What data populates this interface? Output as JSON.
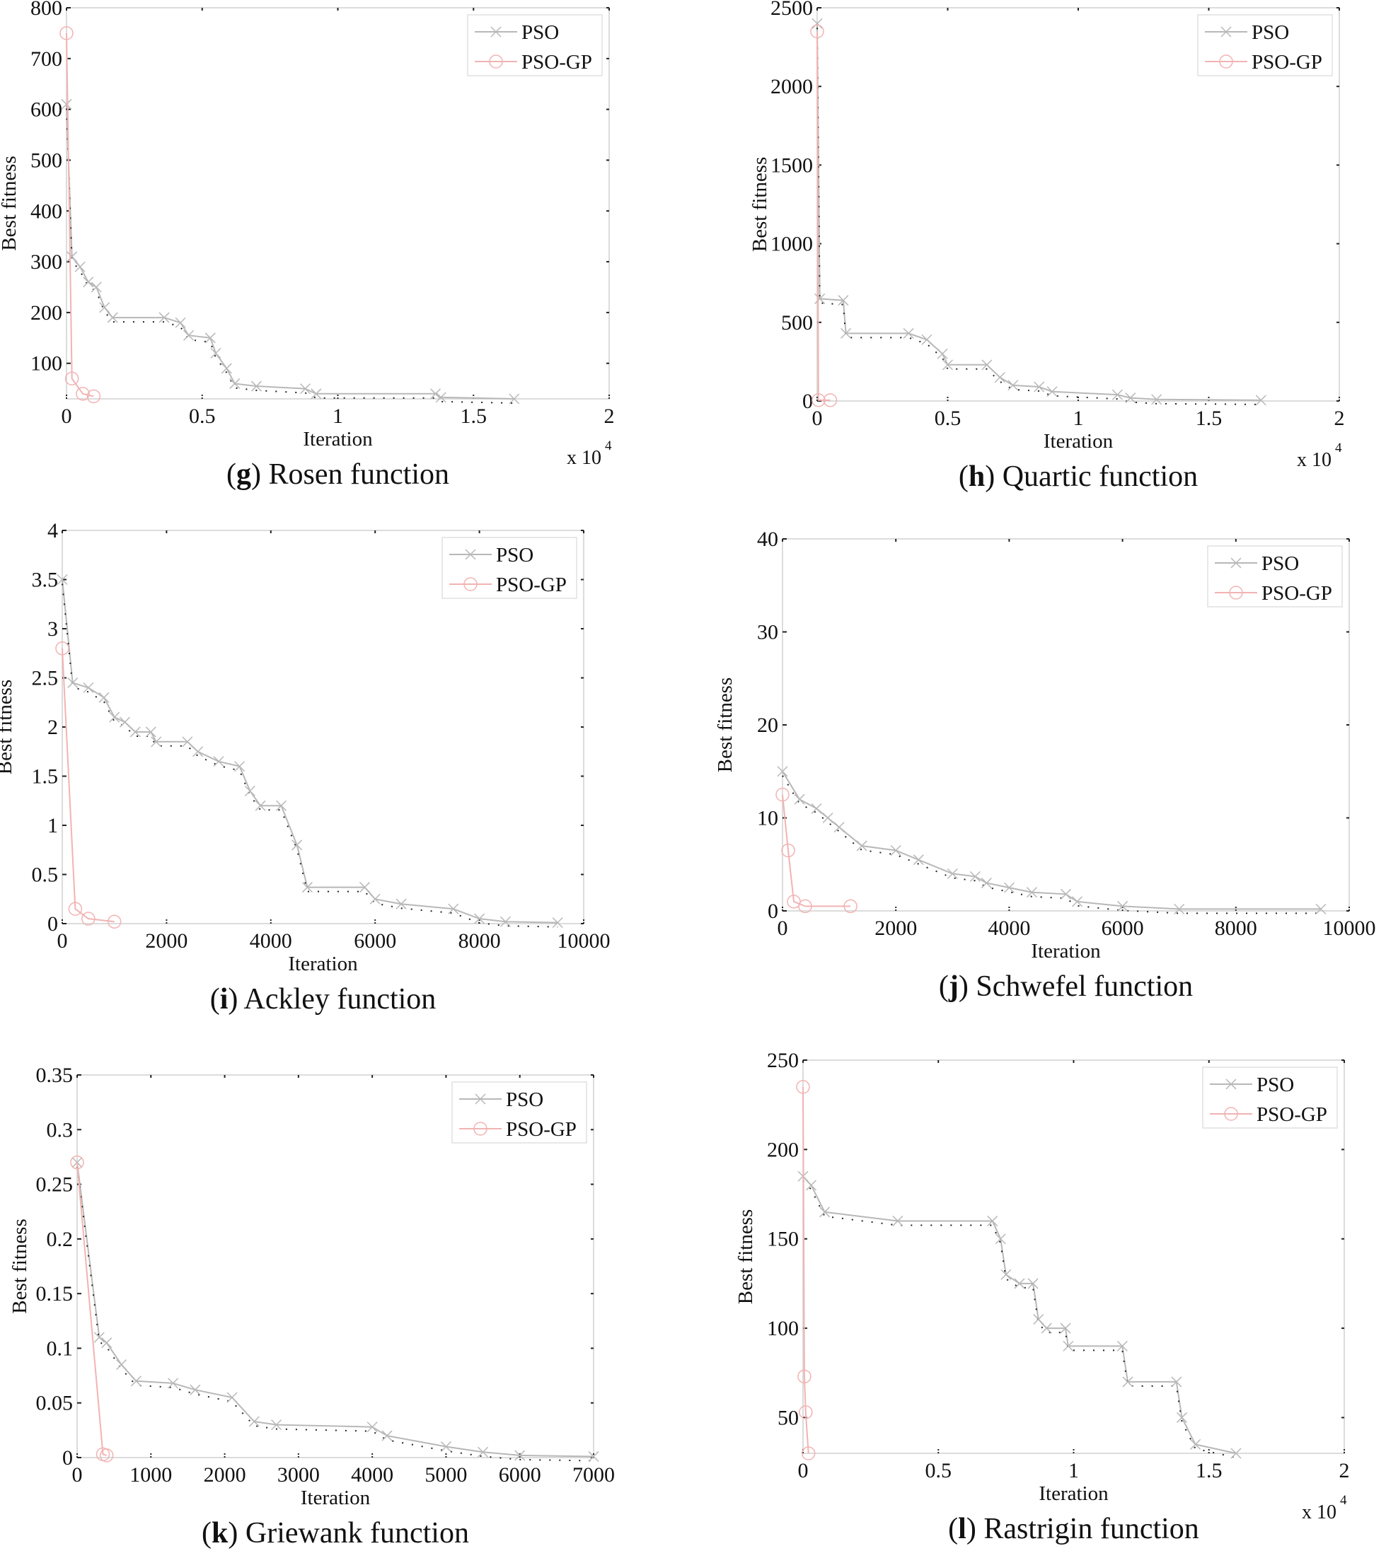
{
  "chart_data": [
    {
      "type": "line",
      "panel": "g",
      "caption_letter": "g",
      "caption_text": "Rosen function",
      "xlabel": "Iteration",
      "ylabel": "Best fitness",
      "x_multiplier": "x 10",
      "x_multiplier_exp": "4",
      "xlim": [
        0,
        20000
      ],
      "ylim": [
        30,
        800
      ],
      "xticks": [
        0,
        5000,
        10000,
        15000,
        20000
      ],
      "xtick_labels": [
        "0",
        "0.5",
        "1",
        "1.5",
        "2"
      ],
      "yticks": [
        100,
        200,
        300,
        400,
        500,
        600,
        700,
        800
      ],
      "ytick_labels": [
        "100",
        "200",
        "300",
        "400",
        "500",
        "600",
        "700",
        "800"
      ],
      "legend": [
        "PSO",
        "PSO-GP"
      ],
      "legend_position": "top-right",
      "series": [
        {
          "name": "PSO",
          "x": [
            0,
            200,
            500,
            800,
            1100,
            1400,
            1700,
            3600,
            4200,
            4500,
            5300,
            5500,
            5900,
            6200,
            7000,
            8800,
            9200,
            13600,
            13800,
            16500
          ],
          "y": [
            610,
            310,
            290,
            260,
            250,
            210,
            190,
            190,
            180,
            155,
            150,
            120,
            90,
            60,
            55,
            50,
            40,
            40,
            33,
            30
          ]
        },
        {
          "name": "PSO-GP",
          "x": [
            0,
            200,
            600,
            1000
          ],
          "y": [
            750,
            70,
            40,
            35
          ]
        }
      ]
    },
    {
      "type": "line",
      "panel": "h",
      "caption_letter": "h",
      "caption_text": "Quartic function",
      "xlabel": "Iteration",
      "ylabel": "Best fitness",
      "x_multiplier": "x 10",
      "x_multiplier_exp": "4",
      "xlim": [
        0,
        20000
      ],
      "ylim": [
        0,
        2500
      ],
      "xticks": [
        0,
        5000,
        10000,
        15000,
        20000
      ],
      "xtick_labels": [
        "0",
        "0.5",
        "1",
        "1.5",
        "2"
      ],
      "yticks": [
        0,
        500,
        1000,
        1500,
        2000,
        2500
      ],
      "ytick_labels": [
        "0",
        "500",
        "1000",
        "1500",
        "2000",
        "2500"
      ],
      "legend": [
        "PSO",
        "PSO-GP"
      ],
      "legend_position": "top-right",
      "series": [
        {
          "name": "PSO",
          "x": [
            0,
            100,
            1000,
            1100,
            3500,
            4200,
            4800,
            5000,
            6500,
            7000,
            7500,
            8500,
            9000,
            11500,
            12000,
            13000,
            17000
          ],
          "y": [
            2400,
            650,
            640,
            430,
            430,
            390,
            300,
            230,
            230,
            150,
            100,
            90,
            60,
            40,
            20,
            10,
            5
          ]
        },
        {
          "name": "PSO-GP",
          "x": [
            0,
            50,
            500
          ],
          "y": [
            2350,
            5,
            5
          ]
        }
      ]
    },
    {
      "type": "line",
      "panel": "i",
      "caption_letter": "i",
      "caption_text": "Ackley function",
      "xlabel": "Iteration",
      "ylabel": "Best fitness",
      "x_multiplier": "",
      "x_multiplier_exp": "",
      "xlim": [
        0,
        10000
      ],
      "ylim": [
        0,
        4
      ],
      "xticks": [
        0,
        2000,
        4000,
        6000,
        8000,
        10000
      ],
      "xtick_labels": [
        "0",
        "2000",
        "4000",
        "6000",
        "8000",
        "10000"
      ],
      "yticks": [
        0,
        0.5,
        1,
        1.5,
        2,
        2.5,
        3,
        3.5,
        4
      ],
      "ytick_labels": [
        "0",
        "0.5",
        "1",
        "1.5",
        "2",
        "2.5",
        "3",
        "3.5",
        "4"
      ],
      "legend": [
        "PSO",
        "PSO-GP"
      ],
      "legend_position": "top-right",
      "series": [
        {
          "name": "PSO",
          "x": [
            0,
            200,
            500,
            800,
            1000,
            1200,
            1400,
            1700,
            1800,
            2400,
            2600,
            3000,
            3400,
            3600,
            3800,
            4200,
            4500,
            4700,
            5800,
            6000,
            6500,
            7500,
            8000,
            8500,
            9500
          ],
          "y": [
            3.5,
            2.45,
            2.4,
            2.3,
            2.1,
            2.05,
            1.95,
            1.95,
            1.85,
            1.85,
            1.75,
            1.65,
            1.6,
            1.35,
            1.2,
            1.2,
            0.8,
            0.37,
            0.37,
            0.25,
            0.2,
            0.15,
            0.05,
            0.02,
            0.01
          ]
        },
        {
          "name": "PSO-GP",
          "x": [
            0,
            250,
            500,
            1000
          ],
          "y": [
            2.8,
            0.15,
            0.05,
            0.02
          ]
        }
      ]
    },
    {
      "type": "line",
      "panel": "j",
      "caption_letter": "j",
      "caption_text": "Schwefel function",
      "xlabel": "Iteration",
      "ylabel": "Best fitness",
      "x_multiplier": "",
      "x_multiplier_exp": "",
      "xlim": [
        0,
        10000
      ],
      "ylim": [
        0,
        40
      ],
      "xticks": [
        0,
        2000,
        4000,
        6000,
        8000,
        10000
      ],
      "xtick_labels": [
        "0",
        "2000",
        "4000",
        "6000",
        "8000",
        "10000"
      ],
      "yticks": [
        0,
        10,
        20,
        30,
        40
      ],
      "ytick_labels": [
        "0",
        "10",
        "20",
        "30",
        "40"
      ],
      "legend": [
        "PSO",
        "PSO-GP"
      ],
      "legend_position": "top-right",
      "series": [
        {
          "name": "PSO",
          "x": [
            0,
            300,
            600,
            800,
            1000,
            1400,
            2000,
            2400,
            3000,
            3400,
            3600,
            4000,
            4400,
            5000,
            5200,
            6000,
            7000,
            9500
          ],
          "y": [
            15,
            12,
            11,
            10,
            9,
            7,
            6.5,
            5.5,
            4,
            3.7,
            3,
            2.5,
            2,
            1.8,
            1,
            0.5,
            0.2,
            0.2
          ]
        },
        {
          "name": "PSO-GP",
          "x": [
            0,
            100,
            200,
            400,
            1200
          ],
          "y": [
            12.5,
            6.5,
            1,
            0.5,
            0.5
          ]
        }
      ]
    },
    {
      "type": "line",
      "panel": "k",
      "caption_letter": "k",
      "caption_text": "Griewank function",
      "xlabel": "Iteration",
      "ylabel": "Best fitness",
      "x_multiplier": "",
      "x_multiplier_exp": "",
      "xlim": [
        0,
        7000
      ],
      "ylim": [
        0,
        0.35
      ],
      "xticks": [
        0,
        1000,
        2000,
        3000,
        4000,
        5000,
        6000,
        7000
      ],
      "xtick_labels": [
        "0",
        "1000",
        "2000",
        "3000",
        "4000",
        "5000",
        "6000",
        "7000"
      ],
      "yticks": [
        0,
        0.05,
        0.1,
        0.15,
        0.2,
        0.25,
        0.3,
        0.35
      ],
      "ytick_labels": [
        "0",
        "0.05",
        "0.1",
        "0.15",
        "0.2",
        "0.25",
        "0.3",
        "0.35"
      ],
      "legend": [
        "PSO",
        "PSO-GP"
      ],
      "legend_position": "top-right",
      "series": [
        {
          "name": "PSO",
          "x": [
            0,
            300,
            400,
            600,
            800,
            1300,
            1600,
            2100,
            2400,
            2700,
            4000,
            4200,
            5000,
            5500,
            6000,
            7000
          ],
          "y": [
            0.27,
            0.11,
            0.105,
            0.085,
            0.07,
            0.068,
            0.062,
            0.055,
            0.033,
            0.03,
            0.028,
            0.02,
            0.01,
            0.005,
            0.002,
            0.001
          ]
        },
        {
          "name": "PSO-GP",
          "x": [
            0,
            350,
            400
          ],
          "y": [
            0.27,
            0.003,
            0.002
          ]
        }
      ]
    },
    {
      "type": "line",
      "panel": "l",
      "caption_letter": "l",
      "caption_text": "Rastrigin function",
      "xlabel": "Iteration",
      "ylabel": "Best fitness",
      "x_multiplier": "x 10",
      "x_multiplier_exp": "4",
      "xlim": [
        0,
        20000
      ],
      "ylim": [
        30,
        250
      ],
      "xticks": [
        0,
        5000,
        10000,
        15000,
        20000
      ],
      "xtick_labels": [
        "0",
        "0.5",
        "1",
        "1.5",
        "2"
      ],
      "yticks": [
        50,
        100,
        150,
        200,
        250
      ],
      "ytick_labels": [
        "50",
        "100",
        "150",
        "200",
        "250"
      ],
      "legend": [
        "PSO",
        "PSO-GP"
      ],
      "legend_position": "top-right",
      "series": [
        {
          "name": "PSO",
          "x": [
            0,
            300,
            800,
            3500,
            7000,
            7300,
            7500,
            8000,
            8500,
            8700,
            9000,
            9700,
            9800,
            11800,
            12000,
            13800,
            14000,
            14500,
            16000
          ],
          "y": [
            185,
            180,
            165,
            160,
            160,
            150,
            130,
            125,
            125,
            105,
            100,
            100,
            90,
            90,
            70,
            70,
            50,
            35,
            30
          ]
        },
        {
          "name": "PSO-GP",
          "x": [
            0,
            50,
            100,
            200
          ],
          "y": [
            235,
            73,
            53,
            30
          ]
        }
      ]
    }
  ],
  "colors": {
    "pso": "#b8b8b8",
    "pso_dots": "#222222",
    "psogp": "#f2b3b3",
    "axis": "#d0d0d0"
  }
}
